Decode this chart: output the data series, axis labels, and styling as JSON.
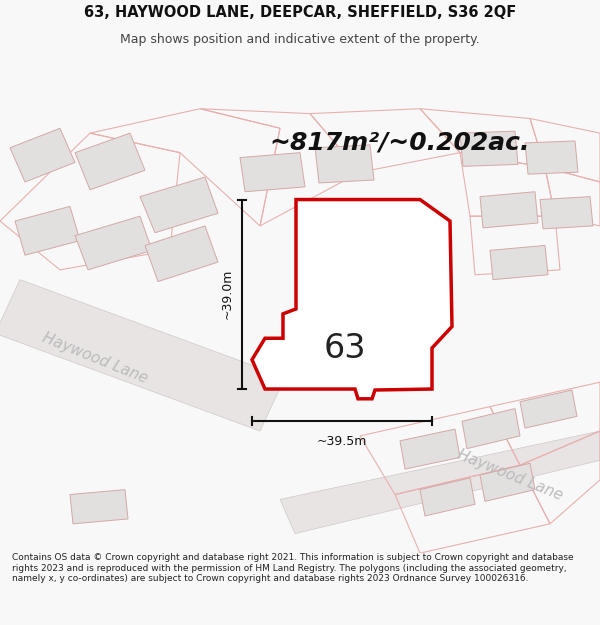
{
  "title_line1": "63, HAYWOOD LANE, DEEPCAR, SHEFFIELD, S36 2QF",
  "title_line2": "Map shows position and indicative extent of the property.",
  "area_label": "~817m²/~0.202ac.",
  "plot_number": "63",
  "dim_height": "~39.0m",
  "dim_width": "~39.5m",
  "street_label1": "Haywood Lane",
  "street_label2": "Haywood Lane",
  "footer_text": "Contains OS data © Crown copyright and database right 2021. This information is subject to Crown copyright and database rights 2023 and is reproduced with the permission of HM Land Registry. The polygons (including the associated geometry, namely x, y co-ordinates) are subject to Crown copyright and database rights 2023 Ordnance Survey 100026316.",
  "bg_color": "#f8f8f8",
  "map_bg": "#f5f3f3",
  "building_fill": "#e2dfdf",
  "building_stroke": "#d4a8a8",
  "plot_outline_fill": "#e8e5e5",
  "highlight_fill": "#ffffff",
  "highlight_stroke": "#cc0000",
  "dim_color": "#111111",
  "street_text_color": "#bbbbbb",
  "road_fill": "#e8e4e4",
  "road_stroke": "#d0c8c8"
}
